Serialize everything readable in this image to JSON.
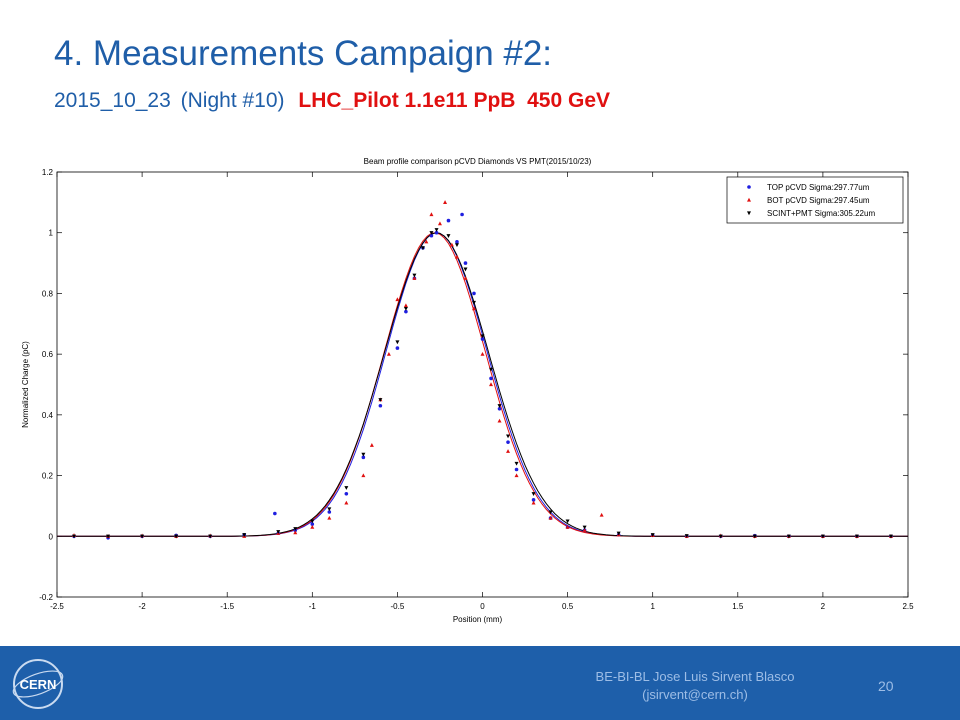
{
  "slide": {
    "title": "4. Measurements Campaign #2:",
    "subtitle_date": "2015_10_23",
    "subtitle_night": "(Night #10)",
    "subtitle_run": "LHC_Pilot 1.1e11 PpB  450 GeV"
  },
  "footer": {
    "author": "BE-BI-BL Jose Luis Sirvent Blasco",
    "email": "(jsirvent@cern.ch)",
    "page_number": "20",
    "logo_text": "CERN"
  },
  "colors": {
    "title": "#1f5ea8",
    "run_label": "#e01010",
    "footer_bg": "#1e5faa",
    "top_series": "#1f1fe0",
    "bot_series": "#e01010",
    "scint_series": "#000000"
  },
  "chart_data": {
    "type": "scatter",
    "title": "Beam profile comparison pCVD Diamonds VS PMT(2015/10/23)",
    "xlabel": "Position (mm)",
    "ylabel": "Normalized Charge (pC)",
    "xlim": [
      -2.5,
      2.5
    ],
    "ylim": [
      -0.2,
      1.2
    ],
    "xticks": [
      -2.5,
      -2,
      -1.5,
      -1,
      -0.5,
      0,
      0.5,
      1,
      1.5,
      2,
      2.5
    ],
    "yticks": [
      -0.2,
      0,
      0.2,
      0.4,
      0.6,
      0.8,
      1,
      1.2
    ],
    "xtick_labels": [
      "-2.5",
      "-2",
      "-1.5",
      "-1",
      "-0.5",
      "0",
      "0.5",
      "1",
      "1.5",
      "2",
      "2.5"
    ],
    "ytick_labels": [
      "-0.2",
      "0",
      "0.2",
      "0.4",
      "0.6",
      "0.8",
      "1",
      "1.2"
    ],
    "grid": false,
    "legend_position": "top-right",
    "series": [
      {
        "name": "TOP pCVD Sigma:297.77um",
        "color": "#1f1fe0",
        "marker": "circle",
        "center": -0.27,
        "sigma": 0.29777,
        "points": [
          [
            -2.4,
            0
          ],
          [
            -2.2,
            -0.005
          ],
          [
            -2.0,
            0
          ],
          [
            -1.8,
            0.003
          ],
          [
            -1.6,
            0
          ],
          [
            -1.4,
            0.005
          ],
          [
            -1.22,
            0.075
          ],
          [
            -1.2,
            0.01
          ],
          [
            -1.1,
            0.02
          ],
          [
            -1.0,
            0.04
          ],
          [
            -0.9,
            0.08
          ],
          [
            -0.8,
            0.14
          ],
          [
            -0.7,
            0.26
          ],
          [
            -0.6,
            0.43
          ],
          [
            -0.5,
            0.62
          ],
          [
            -0.45,
            0.74
          ],
          [
            -0.4,
            0.85
          ],
          [
            -0.35,
            0.95
          ],
          [
            -0.3,
            0.99
          ],
          [
            -0.27,
            1.0
          ],
          [
            -0.2,
            1.04
          ],
          [
            -0.15,
            0.97
          ],
          [
            -0.12,
            1.06
          ],
          [
            -0.1,
            0.9
          ],
          [
            -0.05,
            0.8
          ],
          [
            0.0,
            0.65
          ],
          [
            0.05,
            0.52
          ],
          [
            0.1,
            0.42
          ],
          [
            0.15,
            0.31
          ],
          [
            0.2,
            0.22
          ],
          [
            0.3,
            0.12
          ],
          [
            0.4,
            0.06
          ],
          [
            0.5,
            0.03
          ],
          [
            0.6,
            0.02
          ],
          [
            0.8,
            0.005
          ],
          [
            1.0,
            0.003
          ],
          [
            1.2,
            0
          ],
          [
            1.4,
            0
          ],
          [
            1.6,
            0.002
          ],
          [
            1.8,
            0
          ],
          [
            2.0,
            0
          ],
          [
            2.2,
            0
          ],
          [
            2.4,
            0
          ]
        ]
      },
      {
        "name": "BOT pCVD Sigma:297.45um",
        "color": "#e01010",
        "marker": "triangle",
        "center": -0.28,
        "sigma": 0.29745,
        "points": [
          [
            -2.4,
            0.003
          ],
          [
            -2.2,
            0
          ],
          [
            -2.0,
            0.002
          ],
          [
            -1.8,
            0
          ],
          [
            -1.6,
            0.002
          ],
          [
            -1.4,
            0
          ],
          [
            -1.2,
            0.01
          ],
          [
            -1.1,
            0.012
          ],
          [
            -1.0,
            0.03
          ],
          [
            -0.9,
            0.06
          ],
          [
            -0.8,
            0.11
          ],
          [
            -0.7,
            0.2
          ],
          [
            -0.65,
            0.3
          ],
          [
            -0.6,
            0.45
          ],
          [
            -0.55,
            0.6
          ],
          [
            -0.5,
            0.78
          ],
          [
            -0.45,
            0.76
          ],
          [
            -0.4,
            0.85
          ],
          [
            -0.33,
            0.97
          ],
          [
            -0.3,
            1.06
          ],
          [
            -0.25,
            1.03
          ],
          [
            -0.22,
            1.1
          ],
          [
            -0.18,
            0.96
          ],
          [
            -0.15,
            0.92
          ],
          [
            -0.1,
            0.85
          ],
          [
            -0.05,
            0.75
          ],
          [
            0.0,
            0.6
          ],
          [
            0.05,
            0.5
          ],
          [
            0.1,
            0.38
          ],
          [
            0.15,
            0.28
          ],
          [
            0.2,
            0.2
          ],
          [
            0.3,
            0.11
          ],
          [
            0.4,
            0.06
          ],
          [
            0.5,
            0.03
          ],
          [
            0.6,
            0.02
          ],
          [
            0.7,
            0.07
          ],
          [
            0.8,
            0.005
          ],
          [
            1.0,
            0.003
          ],
          [
            1.2,
            0
          ],
          [
            1.4,
            0.002
          ],
          [
            1.6,
            0
          ],
          [
            1.8,
            0
          ],
          [
            2.0,
            0
          ],
          [
            2.2,
            0
          ],
          [
            2.4,
            0
          ]
        ]
      },
      {
        "name": "SCINT+PMT Sigma:305.22um",
        "color": "#000000",
        "marker": "triangle-down",
        "center": -0.27,
        "sigma": 0.30522,
        "points": [
          [
            -2.4,
            0
          ],
          [
            -2.2,
            0
          ],
          [
            -2.0,
            0
          ],
          [
            -1.8,
            0
          ],
          [
            -1.6,
            0
          ],
          [
            -1.4,
            0.005
          ],
          [
            -1.2,
            0.015
          ],
          [
            -1.1,
            0.025
          ],
          [
            -1.0,
            0.05
          ],
          [
            -0.9,
            0.09
          ],
          [
            -0.8,
            0.16
          ],
          [
            -0.7,
            0.27
          ],
          [
            -0.6,
            0.45
          ],
          [
            -0.5,
            0.64
          ],
          [
            -0.45,
            0.75
          ],
          [
            -0.4,
            0.86
          ],
          [
            -0.35,
            0.95
          ],
          [
            -0.3,
            1.0
          ],
          [
            -0.27,
            1.01
          ],
          [
            -0.2,
            0.99
          ],
          [
            -0.15,
            0.96
          ],
          [
            -0.1,
            0.88
          ],
          [
            -0.05,
            0.77
          ],
          [
            0.0,
            0.66
          ],
          [
            0.05,
            0.55
          ],
          [
            0.1,
            0.43
          ],
          [
            0.15,
            0.33
          ],
          [
            0.2,
            0.24
          ],
          [
            0.3,
            0.14
          ],
          [
            0.4,
            0.08
          ],
          [
            0.5,
            0.05
          ],
          [
            0.6,
            0.03
          ],
          [
            0.8,
            0.01
          ],
          [
            1.0,
            0.005
          ],
          [
            1.2,
            0.002
          ],
          [
            1.4,
            0
          ],
          [
            1.6,
            0
          ],
          [
            1.8,
            0
          ],
          [
            2.0,
            0
          ],
          [
            2.2,
            0
          ],
          [
            2.4,
            0
          ]
        ]
      }
    ]
  }
}
